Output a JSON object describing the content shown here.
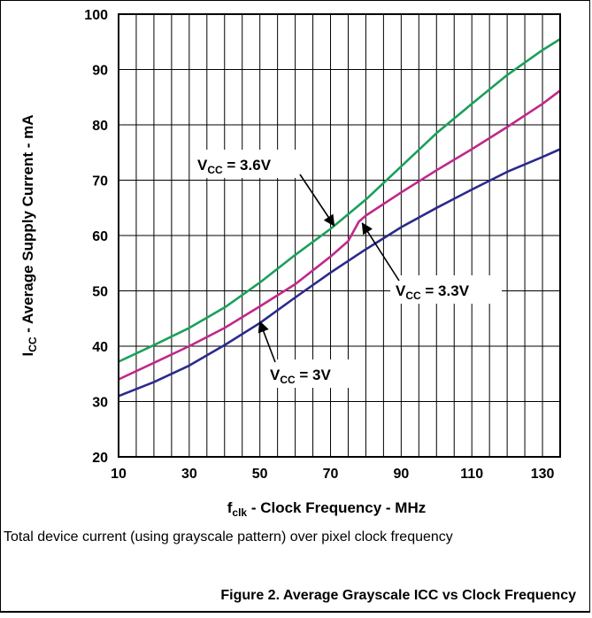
{
  "chart_data": {
    "type": "line",
    "x_ticks": [
      10,
      30,
      50,
      70,
      90,
      110,
      130
    ],
    "y_ticks": [
      20,
      30,
      40,
      50,
      60,
      70,
      80,
      90,
      100
    ],
    "xlim": [
      10,
      135
    ],
    "ylim": [
      20,
      100
    ],
    "grid": true,
    "xlabel": {
      "main": "f",
      "sub": "clk",
      "rest": " - Clock Frequency - MHz"
    },
    "ylabel": {
      "main": "I",
      "sub": "CC",
      "rest": " - Average Supply Current - mA"
    },
    "series": [
      {
        "color": "#1aa05a",
        "x": [
          10,
          20,
          30,
          40,
          50,
          60,
          70,
          80,
          90,
          100,
          110,
          120,
          130,
          135
        ],
        "y": [
          37.2,
          40.2,
          43.3,
          47.0,
          51.5,
          56.5,
          61.2,
          66.5,
          72.5,
          78.5,
          83.8,
          89.0,
          93.5,
          95.5
        ]
      },
      {
        "color": "#c0288a",
        "x": [
          10,
          20,
          30,
          40,
          50,
          60,
          70,
          75,
          78,
          80,
          90,
          100,
          110,
          120,
          130,
          135
        ],
        "y": [
          34.0,
          37.0,
          40.0,
          43.3,
          47.2,
          51.2,
          56.2,
          59.0,
          62.5,
          63.6,
          67.8,
          71.8,
          75.6,
          79.6,
          83.8,
          86.2
        ]
      },
      {
        "color": "#2a2a8c",
        "x": [
          10,
          20,
          30,
          40,
          50,
          60,
          70,
          80,
          90,
          100,
          110,
          120,
          130,
          135
        ],
        "y": [
          31.0,
          33.5,
          36.5,
          40.2,
          44.2,
          48.8,
          53.3,
          57.5,
          61.5,
          65.0,
          68.3,
          71.5,
          74.2,
          75.6
        ]
      }
    ],
    "annotations": [
      {
        "main": "V",
        "sub": "CC",
        "rest": " = 3.6V",
        "arrow_to": [
          71,
          61.8
        ]
      },
      {
        "main": "V",
        "sub": "CC",
        "rest": " = 3.3V",
        "arrow_to": [
          79,
          62.2
        ]
      },
      {
        "main": "V",
        "sub": "CC",
        "rest": " = 3V",
        "arrow_to": [
          50,
          44.4
        ]
      }
    ]
  },
  "caption": "Total device current (using grayscale pattern) over pixel clock frequency",
  "figure_title": "Figure 2. Average Grayscale ICC vs Clock Frequency"
}
